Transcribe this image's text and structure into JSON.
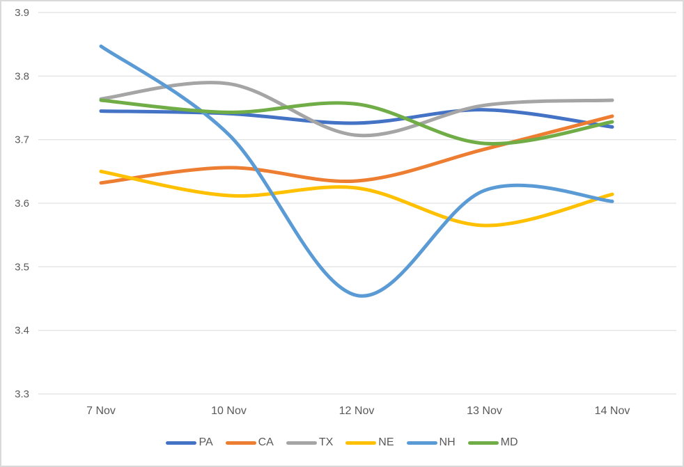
{
  "chart_data": {
    "type": "line",
    "title": "",
    "categories": [
      "7 Nov",
      "10 Nov",
      "12 Nov",
      "13 Nov",
      "14 Nov"
    ],
    "series": [
      {
        "name": "PA",
        "color": "#4472C4",
        "values": [
          3.745,
          3.741,
          3.726,
          3.747,
          3.72
        ]
      },
      {
        "name": "CA",
        "color": "#ED7D31",
        "values": [
          3.632,
          3.656,
          3.635,
          3.685,
          3.737
        ]
      },
      {
        "name": "TX",
        "color": "#A5A5A5",
        "values": [
          3.764,
          3.788,
          3.707,
          3.754,
          3.762
        ]
      },
      {
        "name": "NE",
        "color": "#FFC000",
        "values": [
          3.65,
          3.612,
          3.624,
          3.565,
          3.614
        ]
      },
      {
        "name": "NH",
        "color": "#5B9BD5",
        "values": [
          3.847,
          3.708,
          3.455,
          3.62,
          3.603
        ]
      },
      {
        "name": "MD",
        "color": "#70AD47",
        "values": [
          3.762,
          3.743,
          3.756,
          3.694,
          3.728
        ]
      }
    ],
    "ylim": [
      3.3,
      3.9
    ],
    "y_ticks": [
      "3.9",
      "3.8",
      "3.7",
      "3.6",
      "3.5",
      "3.4",
      "3.3"
    ],
    "grid": true,
    "line_style": "smooth",
    "legend_position": "bottom",
    "axis_text_color": "#595959",
    "gridline_color": "#D9D9D9",
    "background_color": "#FFFFFF",
    "border_color": "#D9D9D9"
  }
}
